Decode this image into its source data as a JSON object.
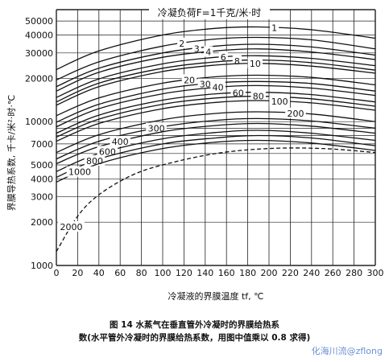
{
  "chart_data": {
    "type": "line",
    "title": "冷凝负荷F=1千克/米·时",
    "xlabel": "冷凝液的界膜温度 tf, ℃",
    "ylabel": "界膜导热系数, 千卡/米²·时·℃",
    "xlim": [
      0,
      300
    ],
    "ylim": [
      1000,
      60000
    ],
    "yscale": "log",
    "grid": true,
    "x_ticks": [
      "0",
      "20",
      "40",
      "60",
      "80",
      "100",
      "120",
      "140",
      "160",
      "180",
      "200",
      "220",
      "240",
      "260",
      "280",
      "300"
    ],
    "y_ticks": [
      "1000",
      "2000",
      "3000",
      "4000",
      "5000",
      "7000",
      "10000",
      "20000",
      "30000",
      "40000",
      "50000"
    ],
    "series": [
      {
        "name": "1",
        "x": [
          0,
          40,
          100,
          150,
          190,
          240,
          300
        ],
        "values": [
          23000,
          31000,
          40000,
          44500,
          45500,
          43500,
          38000
        ]
      },
      {
        "name": "2",
        "x": [
          0,
          40,
          100,
          150,
          190,
          240,
          300
        ],
        "values": [
          19500,
          26000,
          33500,
          37500,
          38500,
          37000,
          32000
        ]
      },
      {
        "name": "3",
        "x": [
          0,
          40,
          100,
          150,
          190,
          240,
          300
        ],
        "values": [
          17500,
          23500,
          30000,
          33500,
          34500,
          33000,
          29000
        ]
      },
      {
        "name": "4",
        "x": [
          0,
          40,
          100,
          150,
          190,
          240,
          300
        ],
        "values": [
          16300,
          22000,
          28000,
          31000,
          32000,
          30500,
          27000
        ]
      },
      {
        "name": "6",
        "x": [
          0,
          40,
          100,
          150,
          190,
          240,
          300
        ],
        "values": [
          14700,
          19800,
          25200,
          28000,
          28700,
          27500,
          24500
        ]
      },
      {
        "name": "8",
        "x": [
          0,
          40,
          100,
          150,
          190,
          240,
          300
        ],
        "values": [
          13700,
          18500,
          23500,
          26000,
          26800,
          25700,
          22800
        ]
      },
      {
        "name": "10",
        "x": [
          0,
          40,
          100,
          150,
          190,
          240,
          300
        ],
        "values": [
          13000,
          17500,
          22300,
          24700,
          25400,
          24300,
          21700
        ]
      },
      {
        "name": "20",
        "x": [
          0,
          40,
          100,
          150,
          190,
          240,
          300
        ],
        "values": [
          11000,
          14600,
          18500,
          20500,
          21000,
          20300,
          18000
        ]
      },
      {
        "name": "30",
        "x": [
          0,
          40,
          100,
          150,
          190,
          240,
          300
        ],
        "values": [
          9900,
          13200,
          16800,
          18600,
          19000,
          18400,
          16300
        ]
      },
      {
        "name": "40",
        "x": [
          0,
          40,
          100,
          150,
          190,
          240,
          300
        ],
        "values": [
          9200,
          12300,
          15600,
          17300,
          17800,
          17100,
          15200
        ]
      },
      {
        "name": "60",
        "x": [
          0,
          40,
          100,
          150,
          190,
          240,
          300
        ],
        "values": [
          8300,
          11100,
          14100,
          15600,
          16000,
          15400,
          13700
        ]
      },
      {
        "name": "80",
        "x": [
          0,
          40,
          100,
          150,
          190,
          240,
          300
        ],
        "values": [
          7800,
          10400,
          13200,
          14600,
          15000,
          14400,
          12800
        ]
      },
      {
        "name": "100",
        "x": [
          0,
          40,
          100,
          150,
          190,
          240,
          300
        ],
        "values": [
          7300,
          9700,
          12300,
          13600,
          14000,
          13500,
          12000
        ]
      },
      {
        "name": "200",
        "x": [
          0,
          40,
          100,
          150,
          190,
          240,
          300
        ],
        "values": [
          6100,
          8100,
          10300,
          11400,
          11700,
          11300,
          10000
        ]
      },
      {
        "name": "300",
        "x": [
          0,
          40,
          100,
          150,
          190,
          240,
          300
        ],
        "values": [
          5500,
          7300,
          9200,
          10200,
          10500,
          10100,
          9000
        ]
      },
      {
        "name": "400",
        "x": [
          0,
          40,
          100,
          150,
          190,
          240,
          300
        ],
        "values": [
          5100,
          6700,
          8500,
          9400,
          9700,
          9300,
          8300
        ]
      },
      {
        "name": "600",
        "x": [
          0,
          40,
          100,
          150,
          190,
          240,
          300
        ],
        "values": [
          4500,
          6000,
          7600,
          8400,
          8700,
          8300,
          7400
        ]
      },
      {
        "name": "800",
        "x": [
          0,
          40,
          100,
          150,
          190,
          240,
          300
        ],
        "values": [
          4100,
          5500,
          7000,
          7700,
          8000,
          7700,
          6800
        ]
      },
      {
        "name": "1000",
        "x": [
          0,
          40,
          100,
          150,
          190,
          240,
          300
        ],
        "values": [
          3800,
          5100,
          6500,
          7200,
          7400,
          7100,
          6300
        ]
      },
      {
        "name": "2000",
        "x": [
          0,
          20,
          40,
          70,
          100,
          150,
          200,
          250,
          300
        ],
        "values": [
          1250,
          2200,
          3100,
          4200,
          5000,
          6000,
          6500,
          6500,
          6100
        ],
        "style": "dashed"
      }
    ],
    "line_label_x": {
      "1": 205,
      "2": 118,
      "3": 132,
      "4": 143,
      "6": 157,
      "8": 170,
      "10": 187,
      "20": 125,
      "30": 140,
      "40": 152,
      "60": 171,
      "80": 190,
      "100": 210,
      "200": 225,
      "300": 94,
      "400": 60,
      "600": 48,
      "800": 36,
      "1000": 22,
      "2000": 14
    }
  },
  "caption": {
    "line1": "图 14  水蒸气在垂直管外冷凝时的界膜给热系",
    "line2": "数(水平管外冷凝时的界膜给热系数，用图中值乘以 0.8 求得)"
  },
  "watermark": "化海川流@zflong"
}
